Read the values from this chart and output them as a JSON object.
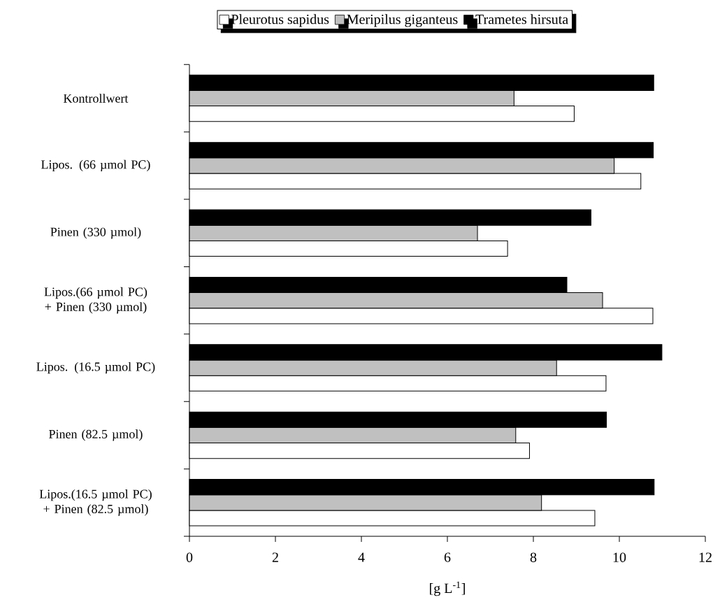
{
  "chart_data": {
    "type": "bar",
    "orientation": "horizontal",
    "xlabel": "[g L$^{-1}$]",
    "categories": [
      "Kontrollwert",
      "Lipos. (66 µmol PC)",
      "Pinen (330 µmol)",
      "Lipos.(66 µmol PC) + Pinen (330 µmol)",
      "Lipos. (16.5 µmol PC)",
      "Pinen (82.5 µmol)",
      "Lipos.(16.5 µmol PC) + Pinen (82.5 µmol)"
    ],
    "series": [
      {
        "name": "Pleurotus sapidus",
        "color": "#ffffff",
        "values": [
          8.95,
          10.5,
          7.4,
          10.78,
          9.69,
          7.91,
          9.43
        ]
      },
      {
        "name": "Meripilus giganteus",
        "color": "#c0c0c0",
        "values": [
          7.55,
          9.88,
          6.7,
          9.61,
          8.54,
          7.59,
          8.19
        ]
      },
      {
        "name": "Trametes hirsuta",
        "color": "#000000",
        "values": [
          10.8,
          10.79,
          9.34,
          8.78,
          10.99,
          9.7,
          10.81
        ]
      }
    ],
    "xlim": [
      0,
      12
    ],
    "xticks": [
      0,
      2,
      4,
      6,
      8,
      10,
      12
    ],
    "legend": "top",
    "grid": false
  }
}
